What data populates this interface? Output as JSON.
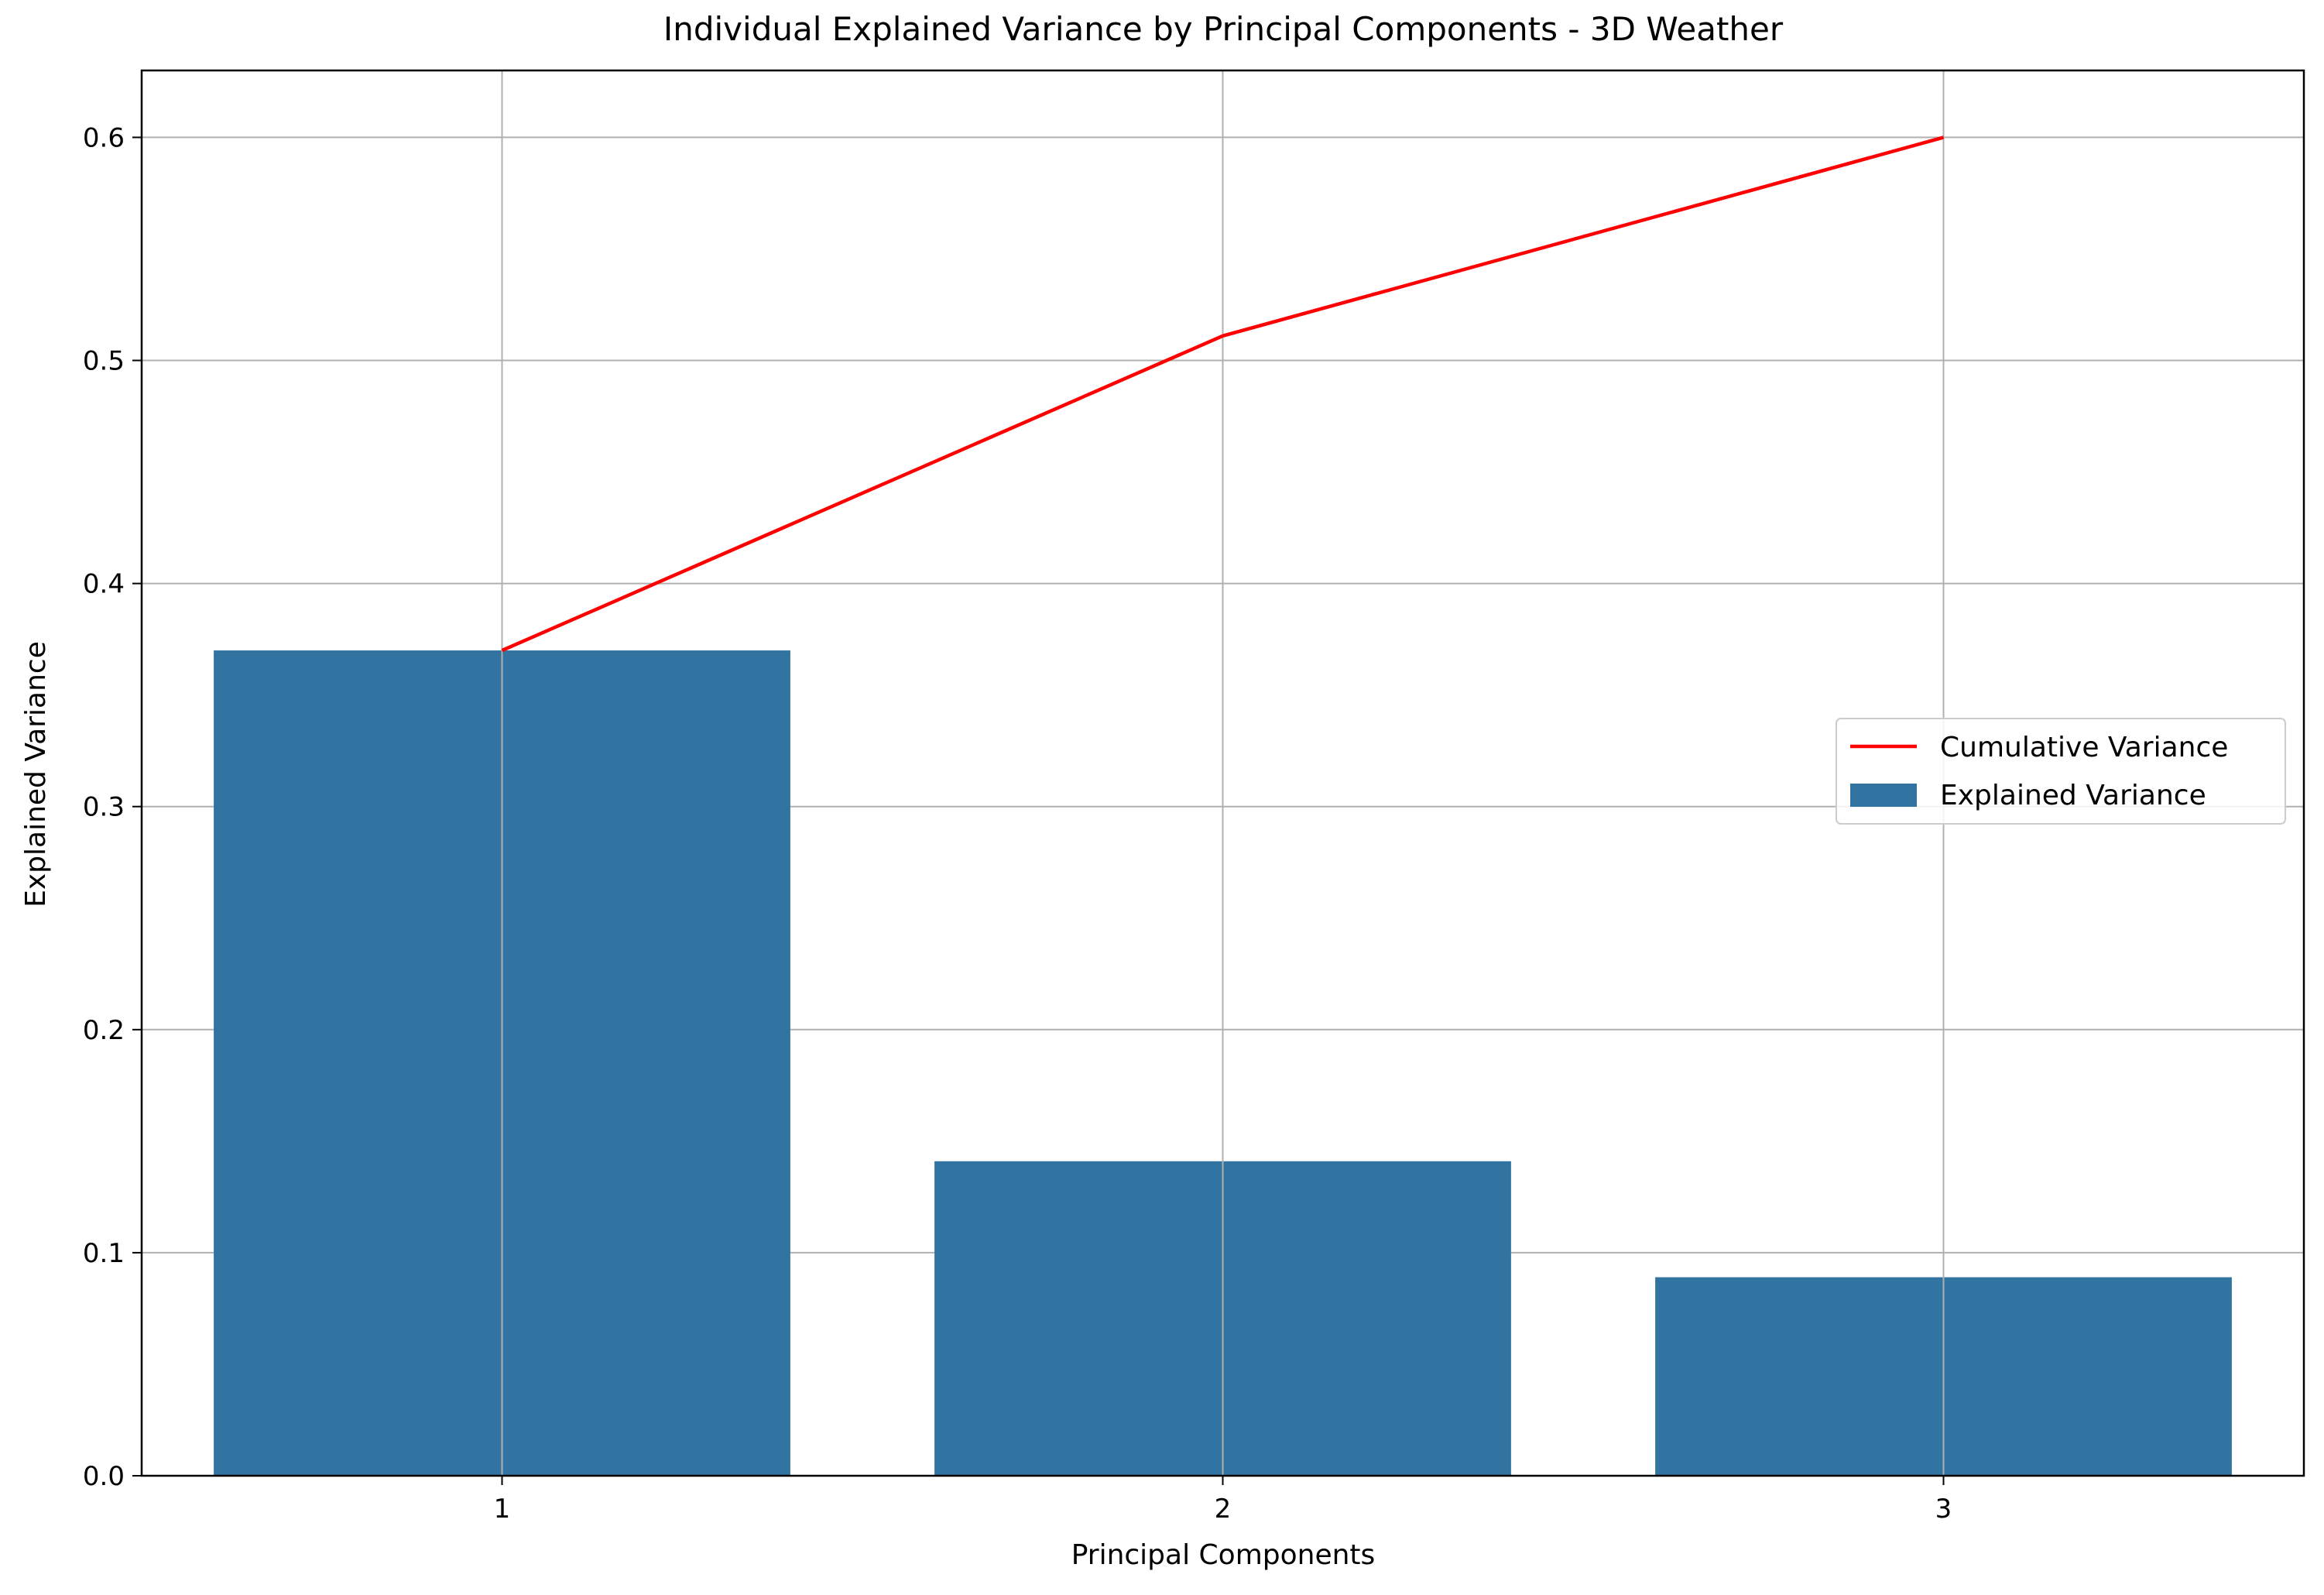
{
  "colors": {
    "bar": "#3274a1",
    "line": "#ff0000",
    "grid": "#b0b0b0",
    "axis": "#000000",
    "background": "#ffffff"
  },
  "chart_data": {
    "type": "bar",
    "title": "Individual Explained Variance by Principal Components - 3D Weather",
    "xlabel": "Principal Components",
    "ylabel": "Explained Variance",
    "categories": [
      "1",
      "2",
      "3"
    ],
    "ylim": [
      0,
      0.63
    ],
    "yticks": [
      "0.0",
      "0.1",
      "0.2",
      "0.3",
      "0.4",
      "0.5",
      "0.6"
    ],
    "grid": true,
    "legend_position": "center-right",
    "series": [
      {
        "name": "Explained Variance",
        "type": "bar",
        "values": [
          0.37,
          0.141,
          0.089
        ]
      },
      {
        "name": "Cumulative Variance",
        "type": "line",
        "values": [
          0.37,
          0.511,
          0.6
        ]
      }
    ]
  }
}
